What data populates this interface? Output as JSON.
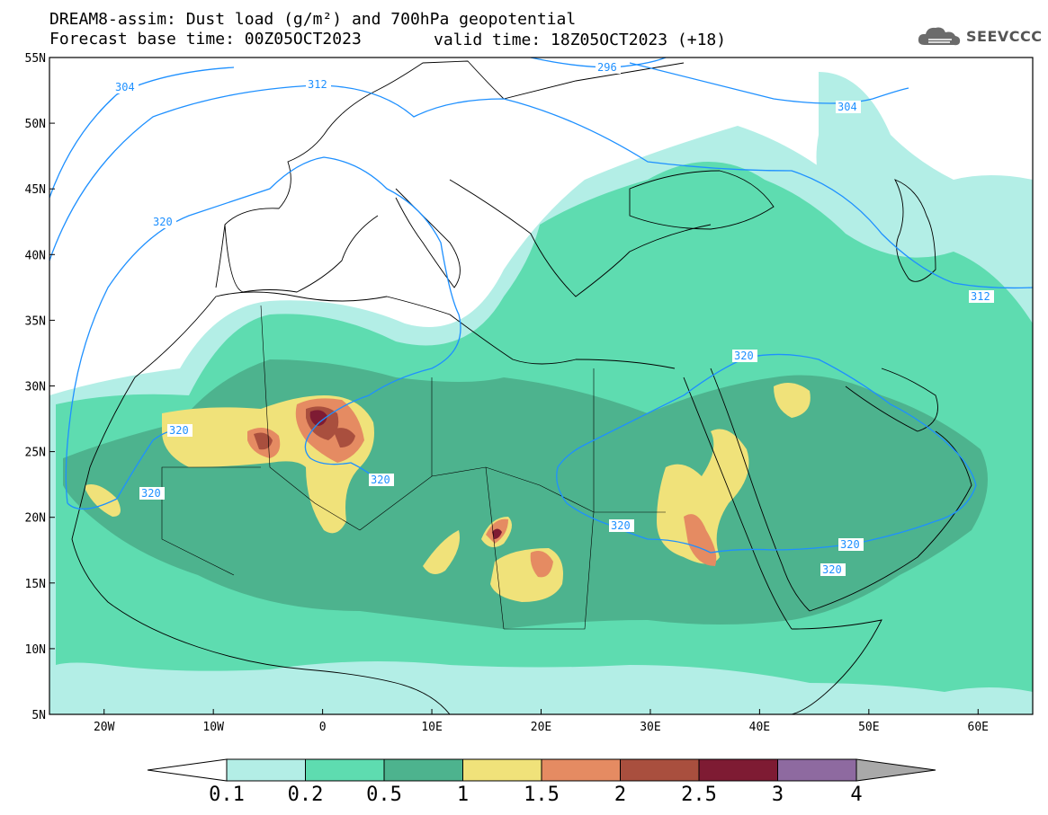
{
  "title": {
    "line1": "DREAM8-assim: Dust load (g/m²) and 700hPa geopotential",
    "line2": "Forecast base time: 00Z05OCT2023",
    "valid": "valid time: 18Z05OCT2023 (+18)"
  },
  "logo": {
    "text": "SEEVCCC",
    "icon": "cloud-icon"
  },
  "axes": {
    "lat_labels": [
      "55N",
      "50N",
      "45N",
      "40N",
      "35N",
      "30N",
      "25N",
      "20N",
      "15N",
      "10N",
      "5N"
    ],
    "lon_labels": [
      "20W",
      "10W",
      "0",
      "10E",
      "20E",
      "30E",
      "40E",
      "50E",
      "60E"
    ],
    "lat_range": [
      5,
      55
    ],
    "lon_range": [
      -25,
      65
    ]
  },
  "contour_labels": [
    "304",
    "312",
    "296",
    "304",
    "320",
    "320",
    "320",
    "320",
    "320",
    "320",
    "320",
    "312",
    "320"
  ],
  "colorbar": {
    "labels": [
      "0.1",
      "0.2",
      "0.5",
      "1",
      "1.5",
      "2",
      "2.5",
      "3",
      "4"
    ],
    "colors": [
      "#B3EEE6",
      "#5EDCB0",
      "#4DB38E",
      "#F0E27A",
      "#E58B62",
      "#A94F3E",
      "#7E1B33",
      "#8E6AA0",
      "#A9A9A9"
    ]
  },
  "colors": {
    "contour": "#1E90FF",
    "coast": "#000000",
    "level1": "#B3EEE6",
    "level2": "#5EDCB0",
    "level3": "#4DB38E",
    "level4": "#F0E27A",
    "level5": "#E58B62",
    "level6": "#A94F3E",
    "level7": "#7E1B33"
  }
}
